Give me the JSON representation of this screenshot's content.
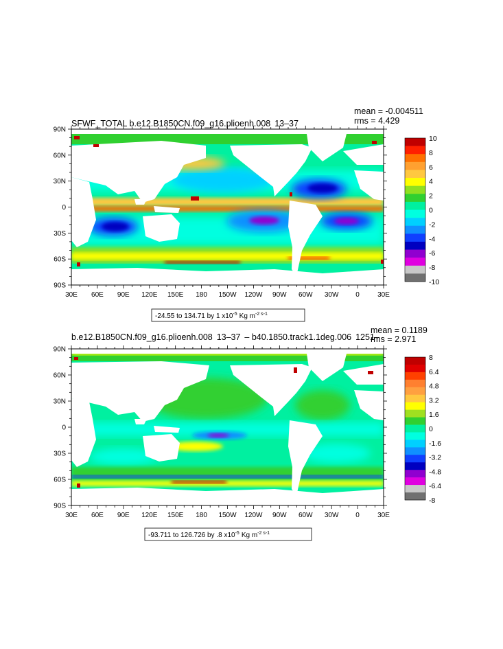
{
  "colors": {
    "land": "#ffffff",
    "frame": "#000000",
    "palette_top": [
      "#c00000",
      "#ff2000",
      "#ff7000",
      "#ffa030",
      "#ffc840",
      "#ffff00",
      "#90e020",
      "#30d030",
      "#00f0a0",
      "#00ffe0",
      "#00d0ff",
      "#1090ff",
      "#1040ff",
      "#0000c0",
      "#9000d0",
      "#e000e0",
      "#c8c8c8",
      "#707070"
    ],
    "palette_bottom": [
      "#c00000",
      "#e00000",
      "#ff4000",
      "#ff8030",
      "#ffa040",
      "#ffc840",
      "#ffff00",
      "#a0e020",
      "#30d030",
      "#00f0a0",
      "#00ffe0",
      "#00d0ff",
      "#1090ff",
      "#1040ff",
      "#0000c0",
      "#9000d0",
      "#e000e0",
      "#c8c8c8",
      "#707070"
    ]
  },
  "axes": {
    "lon_labels": [
      "30E",
      "60E",
      "90E",
      "120E",
      "150E",
      "180",
      "150W",
      "120W",
      "90W",
      "60W",
      "30W",
      "0",
      "30E"
    ],
    "lat_labels": [
      "90N",
      "60N",
      "30N",
      "0",
      "30S",
      "60S",
      "90S"
    ]
  },
  "maps": [
    {
      "title": "SFWF_TOTAL b.e12.B1850CN.f09_g16.plioenh.008  13–37 ",
      "mean": "mean = -0.004511",
      "rms": "rms = 4.429",
      "range": "-24.55 to 134.71 by 1 x10",
      "range_exp": "-5",
      "range_units": "Kg m",
      "range_units_exp": "-2 s-1",
      "colorbar_labels": [
        "10",
        "8",
        "6",
        "4",
        "2",
        "0",
        "-2",
        "-4",
        "-6",
        "-8",
        "-10"
      ]
    },
    {
      "title": "b.e12.B1850CN.f09_g16.plioenh.008  13–37  – b40.1850.track1.1deg.006  1251–",
      "mean": "mean = 0.1189",
      "rms": "rms = 2.971",
      "range": "-93.711 to 126.726 by .8 x10",
      "range_exp": "-5",
      "range_units": "Kg m",
      "range_units_exp": "-2 s-1",
      "colorbar_labels": [
        "8",
        "6.4",
        "4.8",
        "3.2",
        "1.6",
        "0",
        "-1.6",
        "-3.2",
        "-4.8",
        "-6.4",
        "-8"
      ]
    }
  ]
}
